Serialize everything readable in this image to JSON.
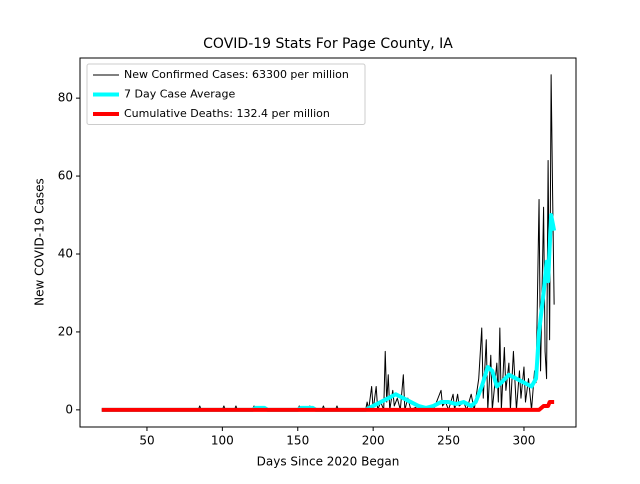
{
  "chart_data": {
    "type": "line",
    "title": "COVID-19 Stats For Page County, IA",
    "xlabel": "Days Since 2020 Began",
    "ylabel": "New COVID-19 Cases",
    "xlim": [
      5.6,
      334.5
    ],
    "xticks": [
      50,
      100,
      150,
      200,
      250,
      300
    ],
    "ylim": [
      -4.4,
      90.3
    ],
    "yticks": [
      0,
      20,
      40,
      60,
      80
    ],
    "legend": "upper left",
    "series": [
      {
        "name": "New Confirmed Cases: 63300 per million",
        "color": "#000000",
        "linewidth": 1,
        "x": [
          20,
          84,
          85,
          86,
          100,
          101,
          102,
          108,
          109,
          110,
          120,
          121,
          122,
          150,
          151,
          152,
          157,
          158,
          159,
          166,
          167,
          168,
          175,
          176,
          177,
          195,
          196,
          197,
          199,
          200,
          202,
          203,
          205,
          207,
          208,
          209,
          210,
          211,
          213,
          214,
          216,
          218,
          220,
          221,
          223,
          225,
          230,
          232,
          238,
          240,
          245,
          246,
          248,
          250,
          253,
          254,
          256,
          257,
          260,
          262,
          265,
          267,
          270,
          272,
          273,
          275,
          276,
          278,
          279,
          282,
          283,
          284,
          285,
          287,
          288,
          290,
          291,
          293,
          295,
          297,
          298,
          300,
          301,
          303,
          305,
          307,
          308,
          310,
          311,
          313,
          314,
          315,
          316,
          317,
          318,
          319,
          320
        ],
        "values": [
          0,
          0,
          1,
          0,
          0,
          1,
          0,
          0,
          1,
          0,
          0,
          1,
          0,
          0,
          1,
          0,
          0,
          1,
          0,
          0,
          1,
          0,
          0,
          1,
          0,
          0,
          2,
          0,
          6,
          0,
          6,
          0,
          2,
          0,
          15,
          2,
          9,
          0,
          5,
          1,
          3,
          0,
          9,
          0,
          3,
          0,
          1,
          0,
          1,
          0,
          5,
          1,
          2,
          0,
          4,
          0,
          4,
          1,
          2,
          0,
          4,
          0,
          8,
          21,
          3,
          18,
          0,
          14,
          0,
          12,
          2,
          21,
          0,
          16,
          5,
          12,
          0,
          15,
          0,
          10,
          3,
          11,
          2,
          8,
          0,
          10,
          7,
          54,
          10,
          52,
          15,
          8,
          64,
          18,
          86,
          55,
          27
        ]
      },
      {
        "name": "7 Day Case Average",
        "color": "#00ffff",
        "linewidth": 4,
        "x": [
          20,
          120,
          122,
          128,
          130,
          150,
          152,
          160,
          162,
          195,
          200,
          205,
          210,
          215,
          220,
          225,
          230,
          235,
          240,
          245,
          250,
          255,
          260,
          265,
          268,
          272,
          276,
          279,
          282,
          285,
          290,
          295,
          300,
          305,
          308,
          310,
          313,
          315,
          316,
          318,
          320
        ],
        "values": [
          0,
          0,
          0.5,
          0.5,
          0,
          0,
          0.5,
          0.5,
          0,
          0,
          1,
          2,
          3,
          4,
          3,
          2,
          1,
          0.5,
          1,
          2,
          2,
          1.5,
          2,
          1,
          2,
          6,
          11,
          10,
          6,
          7,
          9,
          8,
          7,
          6,
          8,
          20,
          30,
          38,
          33,
          50,
          46
        ]
      },
      {
        "name": "Cumulative Deaths: 132.4 per million",
        "color": "#ff0000",
        "linewidth": 4,
        "x": [
          20,
          310,
          313,
          316,
          317,
          320
        ],
        "values": [
          0,
          0,
          1,
          1,
          2,
          2
        ]
      }
    ]
  }
}
